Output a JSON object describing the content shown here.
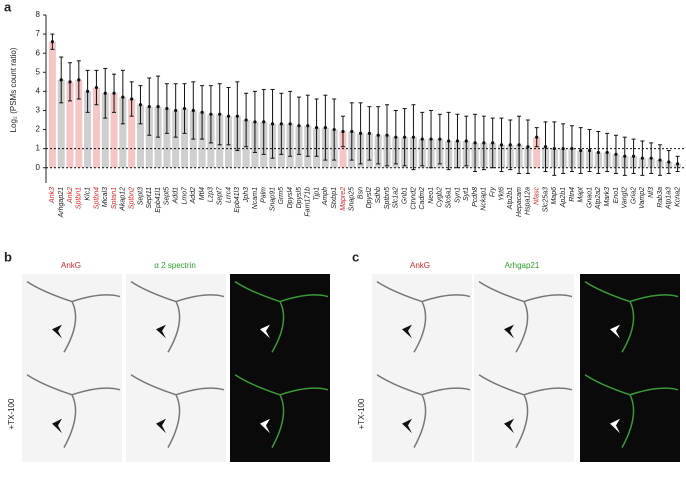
{
  "chart_data": {
    "type": "bar",
    "panel_label": "a",
    "y_label": "Log₂ (PSMs count ratio)",
    "categories": [
      "Ank3",
      "Arhgap21",
      "Ank2",
      "Sptbn1",
      "Klc1",
      "Sptbn4",
      "Mical3",
      "Sptan1",
      "Akap12",
      "Sptbn2",
      "Sept3",
      "Sept11",
      "Epb41l1",
      "Sept5",
      "Add1",
      "Lmo7",
      "Add2",
      "Mtl4",
      "Lzp3",
      "Sept7",
      "Lrrc4",
      "Epb41l3",
      "Jph3",
      "Ncam1",
      "Palm",
      "Snap91",
      "Grm5",
      "Dpysl4",
      "Dpysl5",
      "Fam171b",
      "Tjp1",
      "Amph",
      "Stxbp1",
      "Mapre2",
      "Snap25",
      "Bsn",
      "Dpysl2",
      "Sdhb",
      "Sptbn5",
      "Slc1a2",
      "Gnb1",
      "Ctnnd2",
      "Cadm2",
      "Neo1",
      "Cygb2",
      "Slc6a1",
      "Syn1",
      "Syt1",
      "Pcdh8",
      "Nckap1",
      "Fry",
      "Ykt6",
      "Atp2b1",
      "Hepacam",
      "Hspa12a",
      "Nfasc",
      "Slc25a3",
      "Map6",
      "Ap2b1",
      "Rtn4",
      "Mapt",
      "Gnao1",
      "Atp2a2",
      "Mark3",
      "Eno1",
      "Vangl2",
      "Gria2",
      "Vamp2",
      "Nf3",
      "Rab3a",
      "Atp1a3",
      "Kcna2"
    ],
    "values": [
      6.6,
      4.6,
      4.5,
      4.6,
      4.0,
      4.2,
      3.9,
      3.9,
      3.7,
      3.6,
      3.3,
      3.2,
      3.2,
      3.1,
      3.0,
      3.1,
      3.0,
      2.9,
      2.8,
      2.8,
      2.7,
      2.7,
      2.5,
      2.4,
      2.4,
      2.3,
      2.3,
      2.3,
      2.2,
      2.2,
      2.1,
      2.1,
      2.0,
      1.9,
      1.9,
      1.8,
      1.8,
      1.7,
      1.7,
      1.6,
      1.6,
      1.6,
      1.5,
      1.5,
      1.5,
      1.4,
      1.4,
      1.4,
      1.3,
      1.3,
      1.3,
      1.2,
      1.2,
      1.2,
      1.1,
      1.6,
      1.1,
      1.0,
      1.0,
      1.0,
      0.9,
      0.9,
      0.8,
      0.8,
      0.7,
      0.6,
      0.6,
      0.5,
      0.5,
      0.4,
      0.3,
      0.2
    ],
    "errors": [
      0.4,
      1.2,
      1.0,
      1.0,
      1.1,
      0.9,
      1.3,
      1.0,
      1.4,
      0.9,
      1.0,
      1.5,
      1.6,
      1.3,
      1.4,
      1.3,
      1.5,
      1.4,
      1.5,
      1.6,
      1.5,
      1.8,
      1.4,
      1.6,
      1.7,
      1.8,
      1.6,
      1.7,
      1.5,
      1.6,
      1.5,
      1.7,
      1.6,
      0.8,
      1.5,
      1.6,
      1.4,
      1.5,
      1.6,
      1.4,
      1.5,
      1.7,
      1.4,
      1.5,
      1.3,
      1.5,
      1.4,
      1.3,
      1.5,
      1.4,
      1.3,
      1.4,
      1.3,
      1.5,
      1.4,
      0.5,
      1.3,
      1.4,
      1.3,
      1.2,
      1.2,
      1.1,
      1.1,
      1.0,
      1.0,
      1.0,
      0.9,
      0.9,
      0.8,
      0.8,
      0.6,
      0.4
    ],
    "colors": [
      "#f6c6c6",
      "#cfcfcf",
      "#f6c6c6",
      "#f6c6c6",
      "#cfcfcf",
      "#f6c6c6",
      "#cfcfcf",
      "#f6c6c6",
      "#cfcfcf",
      "#f6c6c6",
      "#cfcfcf",
      "#cfcfcf",
      "#cfcfcf",
      "#cfcfcf",
      "#cfcfcf",
      "#cfcfcf",
      "#cfcfcf",
      "#cfcfcf",
      "#cfcfcf",
      "#cfcfcf",
      "#cfcfcf",
      "#cfcfcf",
      "#cfcfcf",
      "#cfcfcf",
      "#cfcfcf",
      "#cfcfcf",
      "#cfcfcf",
      "#cfcfcf",
      "#cfcfcf",
      "#cfcfcf",
      "#cfcfcf",
      "#cfcfcf",
      "#cfcfcf",
      "#f6c6c6",
      "#cfcfcf",
      "#cfcfcf",
      "#cfcfcf",
      "#cfcfcf",
      "#cfcfcf",
      "#cfcfcf",
      "#cfcfcf",
      "#cfcfcf",
      "#cfcfcf",
      "#cfcfcf",
      "#cfcfcf",
      "#cfcfcf",
      "#cfcfcf",
      "#cfcfcf",
      "#cfcfcf",
      "#cfcfcf",
      "#cfcfcf",
      "#cfcfcf",
      "#cfcfcf",
      "#cfcfcf",
      "#cfcfcf",
      "#f6c6c6",
      "#cfcfcf",
      "#cfcfcf",
      "#cfcfcf",
      "#cfcfcf",
      "#cfcfcf",
      "#cfcfcf",
      "#cfcfcf",
      "#cfcfcf",
      "#cfcfcf",
      "#cfcfcf",
      "#cfcfcf",
      "#cfcfcf",
      "#cfcfcf",
      "#cfcfcf",
      "#cfcfcf",
      "#cfcfcf"
    ],
    "base_color": "#cfcfcf",
    "highlight_label_color": "#d62728",
    "ylim": [
      -0.8,
      8
    ],
    "yticks": [
      0,
      1,
      2,
      3,
      4,
      5,
      6,
      7,
      8
    ],
    "ref_lines": [
      0,
      1
    ]
  },
  "panel_b": {
    "label": "b",
    "col1": "AnkG",
    "col2": "α 2 spectrin",
    "row2": "+TX-100"
  },
  "panel_c": {
    "label": "c",
    "col1": "AnkG",
    "col2": "Arhgap21",
    "row2": "+TX-100"
  }
}
